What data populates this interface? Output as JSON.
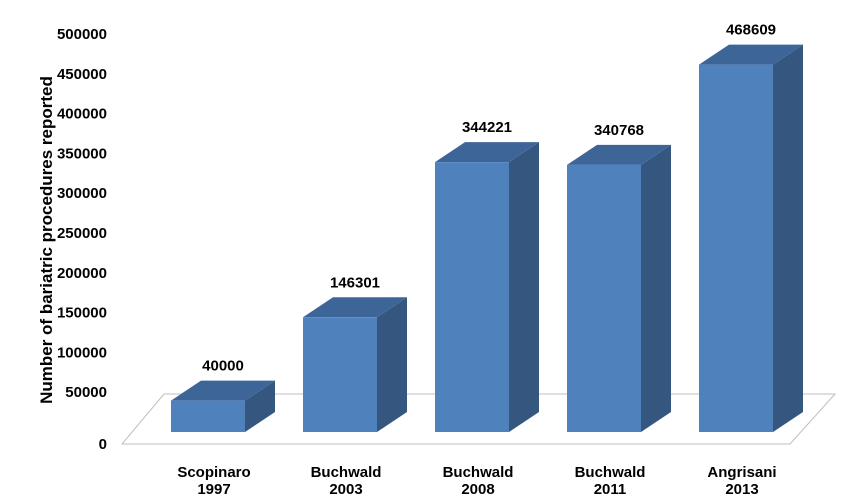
{
  "chart_data": {
    "type": "bar",
    "categories": [
      [
        "Scopinaro",
        "1997"
      ],
      [
        "Buchwald",
        "2003"
      ],
      [
        "Buchwald",
        "2008"
      ],
      [
        "Buchwald",
        "2011"
      ],
      [
        "Angrisani",
        "2013"
      ]
    ],
    "values": [
      40000,
      146301,
      344221,
      340768,
      468609
    ],
    "data_labels": [
      "40000",
      "146301",
      "344221",
      "340768",
      "468609"
    ],
    "ylabel": "Number of bariatric procedures reported",
    "ylim": [
      0,
      500000
    ],
    "yticks": [
      0,
      50000,
      100000,
      150000,
      200000,
      250000,
      300000,
      350000,
      400000,
      450000,
      500000
    ],
    "grid": false,
    "style": "3d-column",
    "colors": {
      "front": "#4f81bd",
      "side": "#34567f",
      "top": "#3d6598",
      "floor_edge": "#bfbfbf"
    }
  }
}
